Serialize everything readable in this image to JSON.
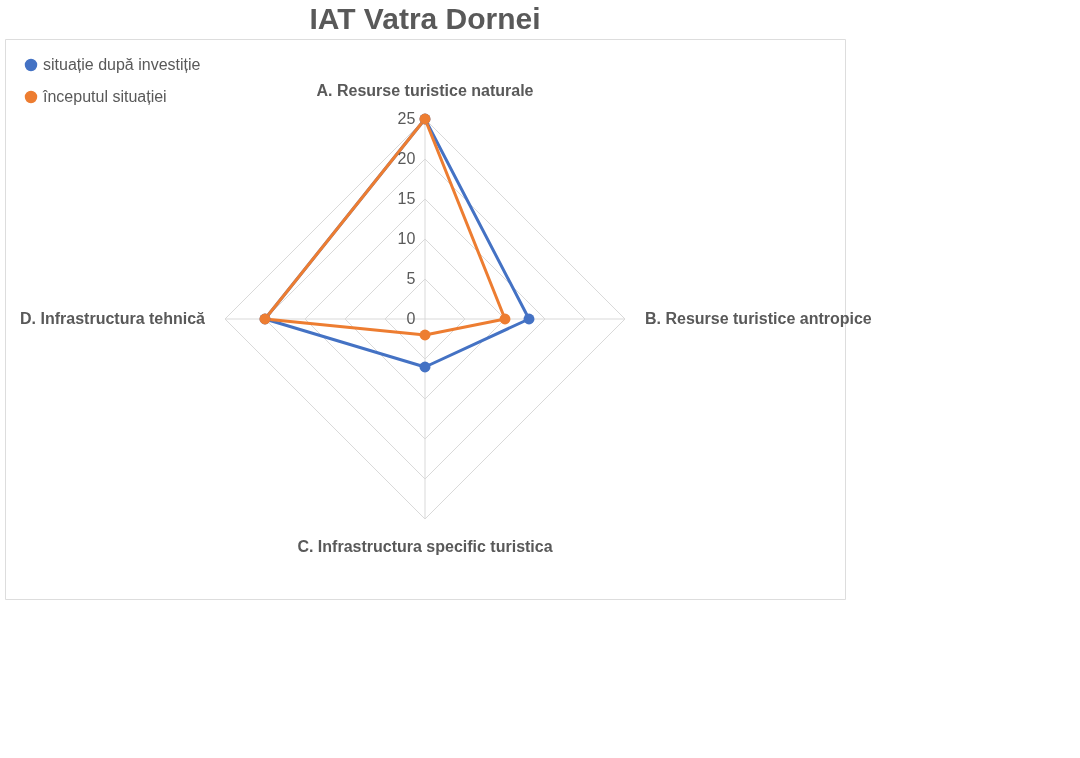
{
  "chart_data": {
    "type": "radar",
    "title": "IAT Vatra Dornei",
    "categories": [
      "A. Resurse turistice naturale",
      "B. Resurse turistice antropice",
      "C. Infrastructura specific turistica",
      "D. Infrastructura tehnică"
    ],
    "series": [
      {
        "name": "situație după investiție",
        "color": "#4472c4",
        "values": [
          25,
          13,
          6,
          20
        ]
      },
      {
        "name": "începutul situației",
        "color": "#ed7d31",
        "values": [
          25,
          10,
          2,
          20
        ]
      }
    ],
    "ylim": [
      0,
      25
    ],
    "yticks": [
      0,
      5,
      10,
      15,
      20,
      25
    ],
    "grid": true,
    "legend": "top left",
    "marker": "circle"
  }
}
